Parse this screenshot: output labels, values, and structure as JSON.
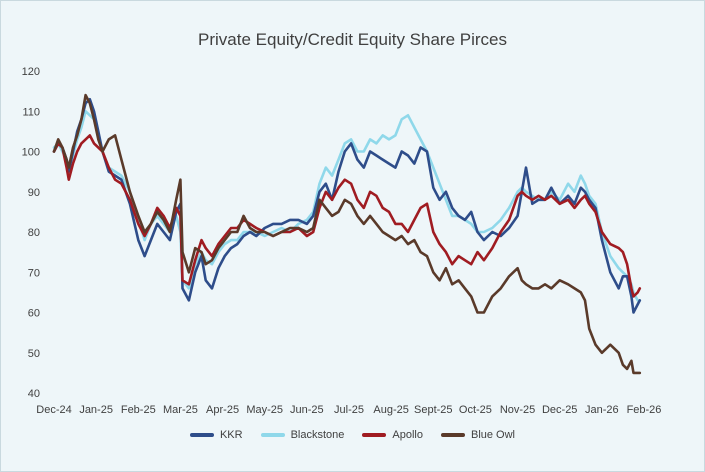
{
  "chart_data": {
    "type": "line",
    "title": "Private Equity/Credit Equity Share Pirces",
    "xlabel": "",
    "ylabel": "",
    "ylim": [
      40,
      120
    ],
    "yticks": [
      40,
      50,
      60,
      70,
      80,
      90,
      100,
      110,
      120
    ],
    "xlim": [
      0,
      14
    ],
    "x_tick_labels": [
      "Dec-24",
      "Jan-25",
      "Feb-25",
      "Mar-25",
      "Apr-25",
      "May-25",
      "Jun-25",
      "Jul-25",
      "Aug-25",
      "Sept-25",
      "Oct-25",
      "Nov-25",
      "Dec-25",
      "Jan-26",
      "Feb-26"
    ],
    "grid": false,
    "legend_position": "bottom",
    "series": [
      {
        "name": "KKR",
        "color": "#2e4d8a",
        "x": [
          0,
          0.1,
          0.2,
          0.3,
          0.35,
          0.45,
          0.55,
          0.65,
          0.75,
          0.85,
          0.95,
          1.05,
          1.15,
          1.3,
          1.45,
          1.6,
          1.8,
          2.0,
          2.15,
          2.3,
          2.45,
          2.6,
          2.75,
          2.9,
          3.0,
          3.05,
          3.2,
          3.35,
          3.5,
          3.6,
          3.75,
          3.9,
          4.05,
          4.2,
          4.35,
          4.5,
          4.65,
          4.8,
          5.0,
          5.2,
          5.4,
          5.6,
          5.8,
          6.0,
          6.15,
          6.3,
          6.45,
          6.6,
          6.75,
          6.9,
          7.05,
          7.2,
          7.35,
          7.5,
          7.65,
          7.8,
          7.95,
          8.1,
          8.25,
          8.4,
          8.55,
          8.7,
          8.85,
          9.0,
          9.15,
          9.3,
          9.45,
          9.6,
          9.75,
          9.9,
          10.05,
          10.2,
          10.4,
          10.6,
          10.8,
          11.0,
          11.1,
          11.2,
          11.35,
          11.5,
          11.65,
          11.8,
          12.0,
          12.2,
          12.35,
          12.5,
          12.6,
          12.7,
          12.85,
          13.0,
          13.2,
          13.4,
          13.5,
          13.6,
          13.7,
          13.75,
          13.85,
          13.9
        ],
        "values": [
          100,
          102,
          101,
          98,
          95,
          100,
          105,
          108,
          112,
          113,
          110,
          105,
          100,
          95,
          94,
          93,
          87,
          78,
          74,
          78,
          82,
          80,
          78,
          85,
          87,
          66,
          63,
          70,
          74,
          68,
          66,
          71,
          74,
          76,
          77,
          79,
          80,
          79,
          81,
          82,
          82,
          83,
          83,
          82,
          84,
          90,
          92,
          88,
          95,
          100,
          102,
          98,
          96,
          100,
          99,
          98,
          97,
          96,
          100,
          99,
          97,
          101,
          100,
          91,
          88,
          90,
          86,
          84,
          83,
          85,
          80,
          78,
          80,
          79,
          81,
          84,
          90,
          96,
          87,
          88,
          88,
          91,
          87,
          89,
          87,
          91,
          90,
          88,
          86,
          78,
          70,
          66,
          69,
          69,
          64,
          60,
          62,
          63
        ]
      },
      {
        "name": "Blackstone",
        "color": "#8fd8ea",
        "x": [
          0,
          0.1,
          0.2,
          0.3,
          0.35,
          0.45,
          0.55,
          0.65,
          0.75,
          0.85,
          0.95,
          1.05,
          1.15,
          1.3,
          1.45,
          1.6,
          1.8,
          2.0,
          2.15,
          2.3,
          2.45,
          2.6,
          2.75,
          2.9,
          3.0,
          3.05,
          3.2,
          3.35,
          3.5,
          3.6,
          3.75,
          3.9,
          4.05,
          4.2,
          4.35,
          4.5,
          4.65,
          4.8,
          5.0,
          5.2,
          5.4,
          5.6,
          5.8,
          6.0,
          6.15,
          6.3,
          6.45,
          6.6,
          6.75,
          6.9,
          7.05,
          7.2,
          7.35,
          7.5,
          7.65,
          7.8,
          7.95,
          8.1,
          8.25,
          8.4,
          8.55,
          8.7,
          8.85,
          9.0,
          9.15,
          9.3,
          9.45,
          9.6,
          9.75,
          9.9,
          10.05,
          10.2,
          10.4,
          10.6,
          10.8,
          11.0,
          11.1,
          11.2,
          11.35,
          11.5,
          11.65,
          11.8,
          12.0,
          12.2,
          12.35,
          12.5,
          12.6,
          12.7,
          12.85,
          13.0,
          13.2,
          13.4,
          13.5,
          13.6,
          13.7,
          13.75,
          13.85,
          13.9
        ],
        "values": [
          101,
          102,
          100,
          98,
          96,
          99,
          103,
          106,
          110,
          109,
          108,
          104,
          100,
          96,
          95,
          94,
          90,
          83,
          78,
          82,
          84,
          82,
          80,
          84,
          80,
          68,
          66,
          72,
          75,
          73,
          72,
          75,
          77,
          78,
          78,
          80,
          80,
          80,
          79,
          80,
          81,
          80,
          82,
          83,
          85,
          92,
          96,
          94,
          98,
          102,
          103,
          100,
          100,
          103,
          102,
          104,
          103,
          104,
          108,
          109,
          106,
          103,
          100,
          96,
          92,
          88,
          84,
          84,
          83,
          82,
          80,
          80,
          81,
          83,
          86,
          90,
          91,
          90,
          89,
          88,
          88,
          90,
          88,
          92,
          90,
          94,
          92,
          89,
          87,
          80,
          74,
          71,
          70,
          69,
          67,
          65,
          63,
          63
        ]
      },
      {
        "name": "Apollo",
        "color": "#a01c22",
        "x": [
          0,
          0.1,
          0.2,
          0.3,
          0.35,
          0.45,
          0.55,
          0.65,
          0.75,
          0.85,
          0.95,
          1.05,
          1.15,
          1.3,
          1.45,
          1.6,
          1.8,
          2.0,
          2.15,
          2.3,
          2.45,
          2.6,
          2.75,
          2.9,
          3.0,
          3.05,
          3.2,
          3.35,
          3.5,
          3.6,
          3.75,
          3.9,
          4.05,
          4.2,
          4.35,
          4.5,
          4.65,
          4.8,
          5.0,
          5.2,
          5.4,
          5.6,
          5.8,
          6.0,
          6.15,
          6.3,
          6.45,
          6.6,
          6.75,
          6.9,
          7.05,
          7.2,
          7.35,
          7.5,
          7.65,
          7.8,
          7.95,
          8.1,
          8.25,
          8.4,
          8.55,
          8.7,
          8.85,
          9.0,
          9.15,
          9.3,
          9.45,
          9.6,
          9.75,
          9.9,
          10.05,
          10.2,
          10.4,
          10.6,
          10.8,
          11.0,
          11.1,
          11.2,
          11.35,
          11.5,
          11.65,
          11.8,
          12.0,
          12.2,
          12.35,
          12.5,
          12.6,
          12.7,
          12.85,
          13.0,
          13.2,
          13.4,
          13.5,
          13.6,
          13.7,
          13.75,
          13.85,
          13.9
        ],
        "values": [
          100,
          102,
          101,
          96,
          93,
          97,
          100,
          102,
          103,
          104,
          102,
          101,
          100,
          96,
          93,
          92,
          88,
          82,
          79,
          82,
          86,
          84,
          81,
          86,
          84,
          68,
          67,
          73,
          78,
          76,
          74,
          77,
          79,
          81,
          81,
          83,
          82,
          81,
          80,
          79,
          80,
          80,
          81,
          79,
          80,
          86,
          90,
          88,
          91,
          93,
          92,
          88,
          86,
          90,
          89,
          86,
          85,
          82,
          82,
          80,
          83,
          86,
          87,
          80,
          77,
          75,
          72,
          74,
          73,
          72,
          75,
          73,
          76,
          80,
          83,
          89,
          90,
          89,
          88,
          89,
          88,
          89,
          87,
          88,
          86,
          88,
          89,
          87,
          85,
          80,
          77,
          76,
          75,
          72,
          66,
          64,
          65,
          66
        ]
      },
      {
        "name": "Blue Owl",
        "color": "#5a3a2a",
        "x": [
          0,
          0.1,
          0.2,
          0.3,
          0.35,
          0.45,
          0.55,
          0.65,
          0.75,
          0.85,
          0.95,
          1.05,
          1.15,
          1.3,
          1.45,
          1.6,
          1.8,
          2.0,
          2.15,
          2.3,
          2.45,
          2.6,
          2.75,
          2.9,
          3.0,
          3.05,
          3.2,
          3.35,
          3.5,
          3.6,
          3.75,
          3.9,
          4.05,
          4.2,
          4.35,
          4.5,
          4.65,
          4.8,
          5.0,
          5.2,
          5.4,
          5.6,
          5.8,
          6.0,
          6.15,
          6.3,
          6.45,
          6.6,
          6.75,
          6.9,
          7.05,
          7.2,
          7.35,
          7.5,
          7.65,
          7.8,
          7.95,
          8.1,
          8.25,
          8.4,
          8.55,
          8.7,
          8.85,
          9.0,
          9.15,
          9.3,
          9.45,
          9.6,
          9.75,
          9.9,
          10.05,
          10.2,
          10.4,
          10.6,
          10.8,
          11.0,
          11.1,
          11.2,
          11.35,
          11.5,
          11.65,
          11.8,
          12.0,
          12.2,
          12.35,
          12.5,
          12.6,
          12.7,
          12.85,
          13.0,
          13.2,
          13.4,
          13.5,
          13.6,
          13.7,
          13.75,
          13.85,
          13.9
        ],
        "values": [
          100,
          103,
          101,
          98,
          96,
          101,
          104,
          108,
          114,
          112,
          108,
          103,
          100,
          103,
          104,
          98,
          90,
          84,
          80,
          82,
          85,
          83,
          80,
          88,
          93,
          75,
          70,
          76,
          75,
          72,
          73,
          76,
          78,
          80,
          80,
          84,
          81,
          80,
          80,
          79,
          80,
          81,
          81,
          80,
          81,
          88,
          86,
          84,
          85,
          88,
          87,
          84,
          82,
          84,
          82,
          80,
          79,
          78,
          79,
          77,
          78,
          75,
          74,
          70,
          68,
          71,
          67,
          68,
          66,
          64,
          60,
          60,
          64,
          66,
          69,
          71,
          68,
          67,
          66,
          66,
          67,
          66,
          68,
          67,
          66,
          65,
          63,
          56,
          52,
          50,
          52,
          50,
          47,
          46,
          48,
          45,
          45,
          45
        ]
      }
    ]
  }
}
